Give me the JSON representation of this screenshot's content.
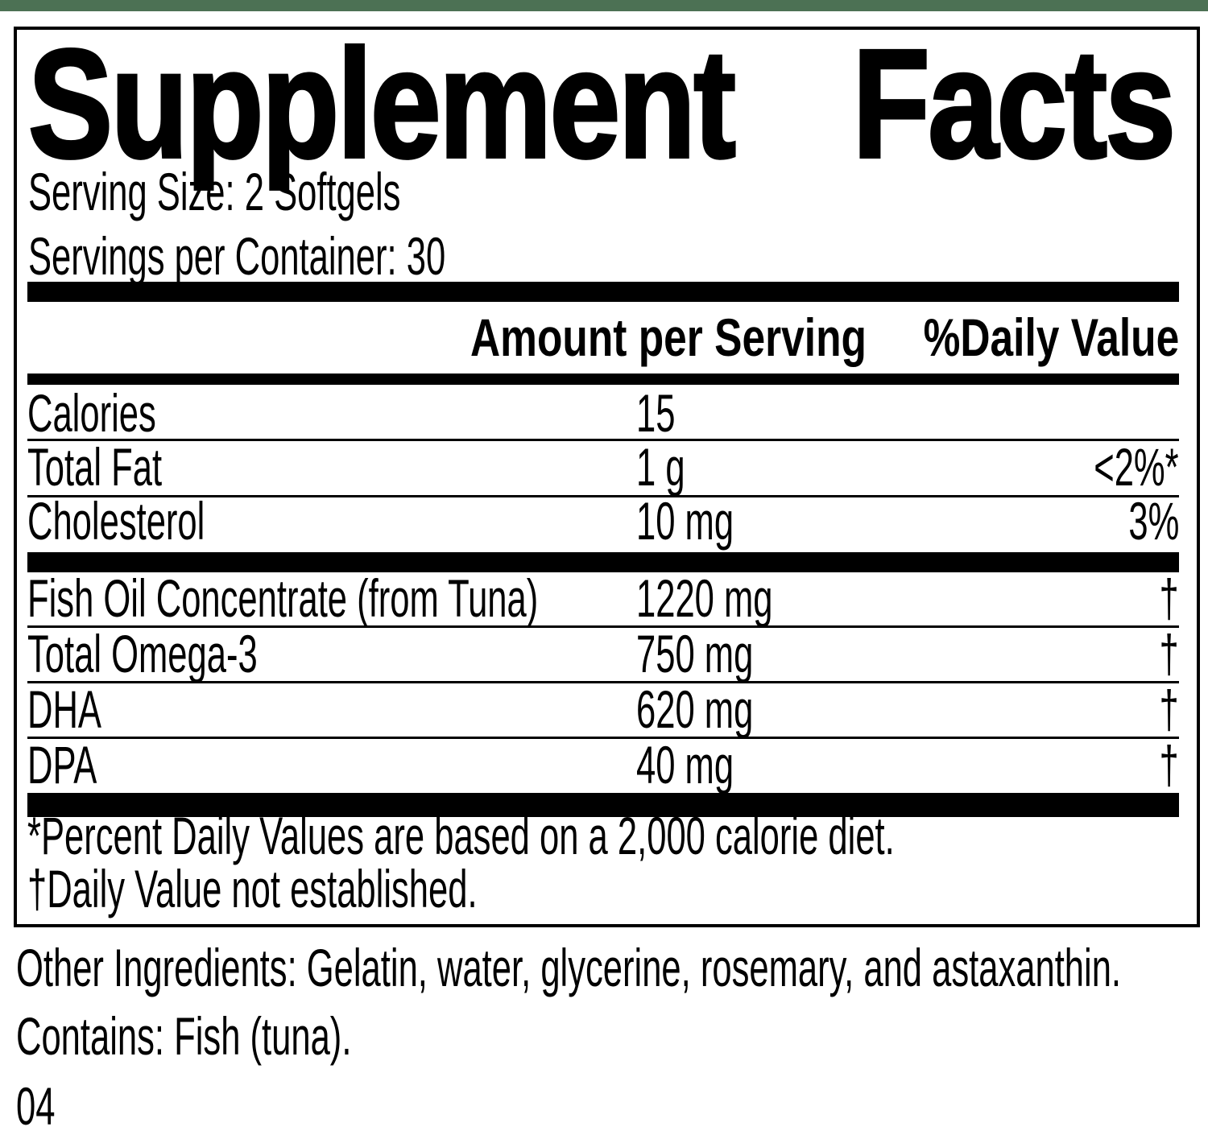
{
  "brand_bar": {
    "color": "#4c7154"
  },
  "panel": {
    "title_left": "Supplement",
    "title_right": "Facts",
    "serving_size": "Serving Size: 2 Softgels",
    "servings_per_container": "Servings per Container: 30",
    "columns": {
      "amount": "Amount per Serving",
      "daily_value": "%Daily Value"
    },
    "rows": [
      {
        "name": "Calories",
        "amount": "15",
        "dv": ""
      },
      {
        "name": "Total Fat",
        "amount": "1 g",
        "dv": "<2%*"
      },
      {
        "name": "Cholesterol",
        "amount": "10 mg",
        "dv": "3%"
      },
      {
        "name": "Fish Oil Concentrate (from Tuna)",
        "amount": "1220 mg",
        "dv": "†"
      },
      {
        "name": "Total Omega-3",
        "amount": "750 mg",
        "dv": "†"
      },
      {
        "name": "DHA",
        "amount": "620 mg",
        "dv": "†"
      },
      {
        "name": "DPA",
        "amount": "40 mg",
        "dv": "†"
      }
    ],
    "footnotes": {
      "percent_dv": "*Percent Daily Values are based on a 2,000 calorie diet.",
      "dagger": "†Daily Value not established."
    }
  },
  "other_ingredients": "Other Ingredients: Gelatin, water, glycerine, rosemary, and astaxanthin.",
  "contains": "Contains: Fish (tuna).",
  "code": "04"
}
